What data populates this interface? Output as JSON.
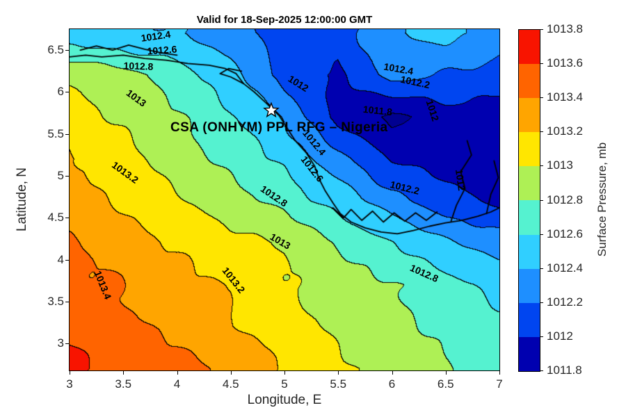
{
  "chart_data": {
    "type": "contour",
    "title": "Valid for 18-Sep-2025 12:00:00 GMT",
    "xlabel": "Longitude, E",
    "ylabel": "Latitude, N",
    "xlim": [
      3,
      7
    ],
    "ylim": [
      2.68,
      6.75
    ],
    "x_ticks": [
      3,
      3.5,
      4,
      4.5,
      5,
      5.5,
      6,
      6.5,
      7
    ],
    "x_tick_labels": [
      "3",
      "3.5",
      "4",
      "4.5",
      "5",
      "5.5",
      "6",
      "6.5",
      "7"
    ],
    "y_ticks": [
      3,
      3.5,
      4,
      4.5,
      5,
      5.5,
      6,
      6.5
    ],
    "y_tick_labels": [
      "3",
      "3.5",
      "4",
      "4.5",
      "5",
      "5.5",
      "6",
      "6.5"
    ],
    "levels": [
      1011.8,
      1012,
      1012.2,
      1012.4,
      1012.6,
      1012.8,
      1013,
      1013.2,
      1013.4,
      1013.6,
      1013.8
    ],
    "band_colors": [
      "#0000B0",
      "#0045F0",
      "#1E8FFF",
      "#30CFFF",
      "#55F2D0",
      "#AEF055",
      "#FFE600",
      "#FFA500",
      "#FF6400",
      "#F81400"
    ],
    "underflow_color": "#000090",
    "colorbar": {
      "label": "Surface Pressure, mb",
      "tick_labels": [
        "1013.8",
        "1013.6",
        "1013.4",
        "1013.2",
        "1013",
        "1012.8",
        "1012.6",
        "1012.4",
        "1012.2",
        "1012",
        "1011.8"
      ]
    },
    "grid": {
      "lons": [
        3,
        3.5,
        4,
        4.5,
        5,
        5.5,
        6,
        6.5,
        7
      ],
      "lats": [
        6.7,
        6.2,
        5.7,
        5.2,
        4.7,
        4.2,
        3.7,
        3.2,
        2.7
      ],
      "values": [
        [
          1012.45,
          1012.4,
          1012.42,
          1012.28,
          1012.12,
          1012.1,
          1012.38,
          1012.48,
          1012.3
        ],
        [
          1012.98,
          1012.88,
          1012.68,
          1012.48,
          1012.12,
          1011.95,
          1012.28,
          1012.18,
          1012.12
        ],
        [
          1013.06,
          1012.96,
          1012.82,
          1012.62,
          1012.38,
          1011.92,
          1011.74,
          1011.92,
          1011.88
        ],
        [
          1013.22,
          1013.08,
          1012.92,
          1012.74,
          1012.55,
          1012.28,
          1011.98,
          1011.9,
          1011.86
        ],
        [
          1013.3,
          1013.18,
          1013.02,
          1012.88,
          1012.72,
          1012.52,
          1012.28,
          1012.08,
          1011.96
        ],
        [
          1013.42,
          1013.28,
          1013.16,
          1013.06,
          1012.98,
          1012.78,
          1012.62,
          1012.42,
          1012.3
        ],
        [
          1013.46,
          1013.4,
          1013.26,
          1013.18,
          1013.02,
          1012.92,
          1012.82,
          1012.68,
          1012.55
        ],
        [
          1013.55,
          1013.45,
          1013.35,
          1013.22,
          1013.08,
          1012.95,
          1012.85,
          1012.75,
          1012.64
        ],
        [
          1013.65,
          1013.55,
          1013.45,
          1013.35,
          1013.2,
          1013.05,
          1012.92,
          1012.82,
          1012.72
        ]
      ]
    },
    "contour_labels": [
      {
        "text": "1012.4",
        "lon": 3.8,
        "lat": 6.67,
        "rot": -8
      },
      {
        "text": "1012.6",
        "lon": 3.86,
        "lat": 6.5,
        "rot": -4
      },
      {
        "text": "1012.8",
        "lon": 3.64,
        "lat": 6.31,
        "rot": 2
      },
      {
        "text": "1013",
        "lon": 3.62,
        "lat": 5.93,
        "rot": 36
      },
      {
        "text": "1013.2",
        "lon": 3.52,
        "lat": 5.04,
        "rot": 36
      },
      {
        "text": "1013.4",
        "lon": 3.31,
        "lat": 3.7,
        "rot": 68
      },
      {
        "text": "1012",
        "lon": 5.13,
        "lat": 6.1,
        "rot": 32
      },
      {
        "text": "1012.4",
        "lon": 6.06,
        "lat": 6.28,
        "rot": 10
      },
      {
        "text": "1012.2",
        "lon": 6.22,
        "lat": 6.12,
        "rot": 12
      },
      {
        "text": "1011.8",
        "lon": 5.87,
        "lat": 5.78,
        "rot": 6
      },
      {
        "text": "1012",
        "lon": 6.38,
        "lat": 5.78,
        "rot": 72
      },
      {
        "text": "1012.4",
        "lon": 5.28,
        "lat": 5.4,
        "rot": 50
      },
      {
        "text": "1012.6",
        "lon": 5.26,
        "lat": 5.08,
        "rot": 52
      },
      {
        "text": "1012.2",
        "lon": 6.12,
        "lat": 4.86,
        "rot": 14
      },
      {
        "text": "1012",
        "lon": 6.64,
        "lat": 4.95,
        "rot": 82
      },
      {
        "text": "1012.8",
        "lon": 4.9,
        "lat": 4.76,
        "rot": 34
      },
      {
        "text": "1013",
        "lon": 4.96,
        "lat": 4.22,
        "rot": 30
      },
      {
        "text": "1013.2",
        "lon": 4.53,
        "lat": 3.76,
        "rot": 52
      },
      {
        "text": "1012.8",
        "lon": 6.3,
        "lat": 3.84,
        "rot": 24
      }
    ],
    "annotation": {
      "text": "CSA (ONHYM) PPL RFG – Nigeria",
      "lon": 4.95,
      "lat": 5.57,
      "star": {
        "lon": 4.88,
        "lat": 5.78
      }
    },
    "coastline": [
      [
        [
          3.0,
          6.42
        ],
        [
          3.15,
          6.44
        ],
        [
          3.3,
          6.42
        ],
        [
          3.5,
          6.44
        ],
        [
          3.7,
          6.4
        ],
        [
          3.9,
          6.38
        ],
        [
          4.1,
          6.34
        ],
        [
          4.3,
          6.32
        ],
        [
          4.45,
          6.28
        ],
        [
          4.55,
          6.22
        ],
        [
          4.62,
          6.1
        ],
        [
          4.72,
          6.0
        ],
        [
          4.82,
          5.88
        ],
        [
          4.95,
          5.72
        ],
        [
          5.02,
          5.58
        ],
        [
          5.1,
          5.42
        ],
        [
          5.2,
          5.28
        ],
        [
          5.28,
          5.12
        ],
        [
          5.32,
          4.97
        ],
        [
          5.38,
          4.82
        ],
        [
          5.45,
          4.68
        ],
        [
          5.52,
          4.55
        ],
        [
          5.62,
          4.45
        ],
        [
          5.75,
          4.38
        ],
        [
          5.9,
          4.33
        ],
        [
          6.05,
          4.31
        ],
        [
          6.2,
          4.35
        ],
        [
          6.35,
          4.4
        ],
        [
          6.5,
          4.44
        ],
        [
          6.65,
          4.47
        ],
        [
          6.8,
          4.52
        ],
        [
          6.92,
          4.57
        ],
        [
          7.0,
          4.62
        ]
      ],
      [
        [
          3.1,
          6.5
        ],
        [
          3.25,
          6.55
        ],
        [
          3.4,
          6.5
        ],
        [
          3.55,
          6.56
        ],
        [
          3.7,
          6.51
        ],
        [
          3.85,
          6.47
        ],
        [
          4.0,
          6.44
        ]
      ],
      [
        [
          5.45,
          4.62
        ],
        [
          5.55,
          4.5
        ],
        [
          5.62,
          4.6
        ],
        [
          5.72,
          4.47
        ],
        [
          5.82,
          4.58
        ],
        [
          5.92,
          4.45
        ],
        [
          6.02,
          4.56
        ],
        [
          6.12,
          4.46
        ],
        [
          6.22,
          4.56
        ],
        [
          6.32,
          4.47
        ],
        [
          6.42,
          4.57
        ]
      ],
      [
        [
          6.55,
          4.46
        ],
        [
          6.6,
          4.65
        ],
        [
          6.68,
          4.85
        ],
        [
          6.64,
          5.05
        ],
        [
          6.74,
          5.25
        ],
        [
          6.7,
          5.42
        ]
      ],
      [
        [
          6.88,
          4.55
        ],
        [
          6.92,
          4.78
        ],
        [
          6.99,
          4.98
        ],
        [
          6.95,
          5.18
        ]
      ],
      [
        [
          4.62,
          6.1
        ],
        [
          4.5,
          6.18
        ],
        [
          4.4,
          6.22
        ],
        [
          4.48,
          6.28
        ],
        [
          4.6,
          6.25
        ]
      ]
    ]
  }
}
